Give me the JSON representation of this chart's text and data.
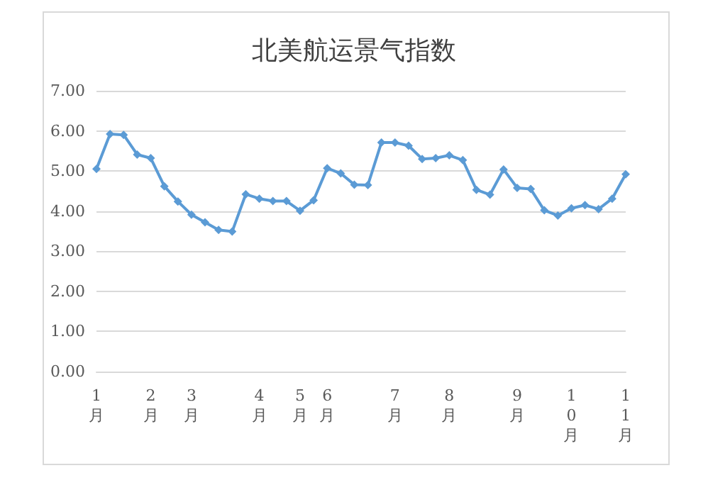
{
  "chart_data": {
    "type": "line",
    "title": "北美航运景气指数",
    "categories": [
      "1月",
      null,
      null,
      null,
      "2月",
      null,
      null,
      "3月",
      null,
      null,
      null,
      null,
      "4月",
      null,
      null,
      "5月",
      null,
      "6月",
      null,
      null,
      null,
      null,
      "7月",
      null,
      null,
      null,
      "8月",
      null,
      null,
      null,
      null,
      "9月",
      null,
      null,
      null,
      "10月",
      null,
      null,
      null,
      "11月"
    ],
    "series": [
      {
        "color": "#5b9bd5",
        "values": [
          5.05,
          5.92,
          5.9,
          5.41,
          5.32,
          4.62,
          4.24,
          3.91,
          3.72,
          3.53,
          3.49,
          4.42,
          4.31,
          4.25,
          4.25,
          4.01,
          4.27,
          5.07,
          4.94,
          4.66,
          4.65,
          5.71,
          5.71,
          5.63,
          5.3,
          5.32,
          5.39,
          5.27,
          4.53,
          4.41,
          5.04,
          4.58,
          4.55,
          4.02,
          3.89,
          4.07,
          4.15,
          4.05,
          4.31,
          4.92
        ]
      }
    ],
    "ylim": [
      0,
      7
    ],
    "yticks": [
      {
        "value": 0,
        "label": "0.00"
      },
      {
        "value": 1,
        "label": "1.00"
      },
      {
        "value": 2,
        "label": "2.00"
      },
      {
        "value": 3,
        "label": "3.00"
      },
      {
        "value": 4,
        "label": "4.00"
      },
      {
        "value": 5,
        "label": "5.00"
      },
      {
        "value": 6,
        "label": "6.00"
      },
      {
        "value": 7,
        "label": "7.00"
      }
    ],
    "grid": "y",
    "marker": "diamond",
    "line_style": "solid"
  }
}
